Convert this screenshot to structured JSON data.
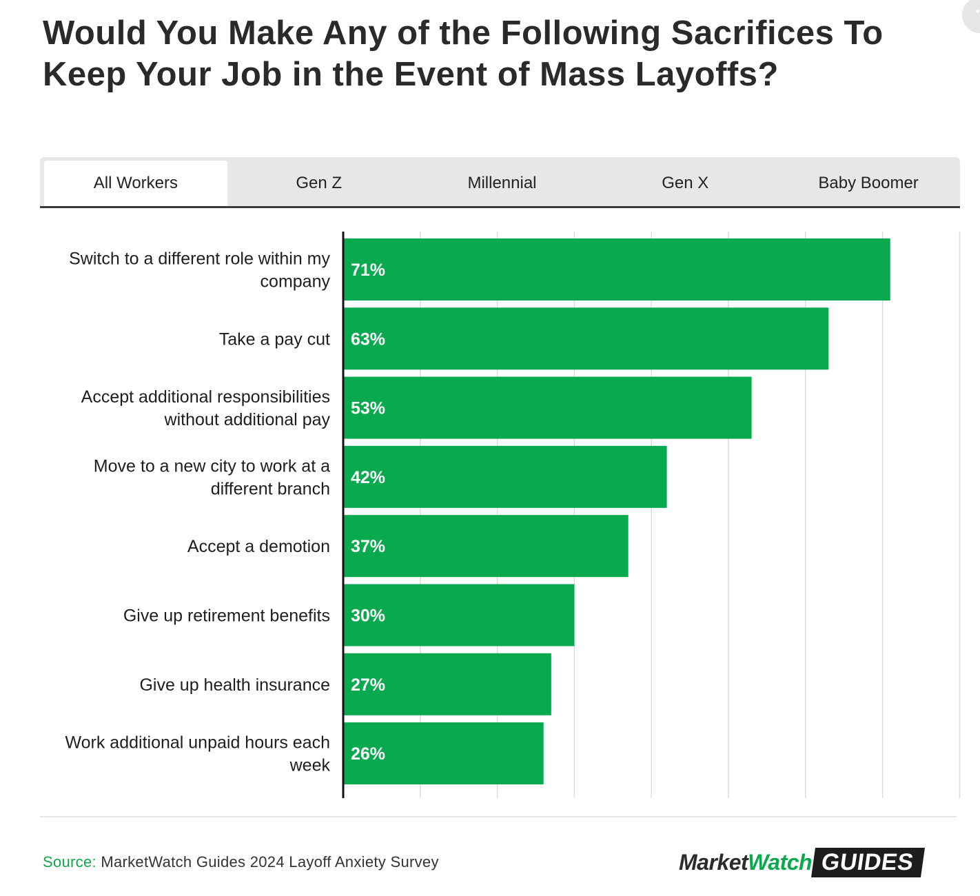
{
  "header": {
    "title_line1": "Would You Make Any of the Following Sacrifices To",
    "title_line2": "Keep Your Job in the Event of Mass Layoffs?"
  },
  "tabs": [
    {
      "label": "All Workers",
      "active": true
    },
    {
      "label": "Gen Z",
      "active": false
    },
    {
      "label": "Millennial",
      "active": false
    },
    {
      "label": "Gen X",
      "active": false
    },
    {
      "label": "Baby Boomer",
      "active": false
    }
  ],
  "chart_data": {
    "type": "bar",
    "orientation": "horizontal",
    "categories": [
      [
        "Switch to a different role within my",
        "company"
      ],
      [
        "Take a pay cut"
      ],
      [
        "Accept additional responsibilities",
        "without additional pay"
      ],
      [
        "Move to a new city to work at a",
        "different branch"
      ],
      [
        "Accept a demotion"
      ],
      [
        "Give up retirement benefits"
      ],
      [
        "Give up health insurance"
      ],
      [
        "Work additional unpaid hours each",
        "week"
      ]
    ],
    "values": [
      71,
      63,
      53,
      42,
      37,
      30,
      27,
      26
    ],
    "value_labels": [
      "71%",
      "63%",
      "53%",
      "42%",
      "37%",
      "30%",
      "27%",
      "26%"
    ],
    "xlim": [
      0,
      80
    ],
    "grid": "vertical, every 10",
    "bar_color": "#09aa4f",
    "legend": "none"
  },
  "footer": {
    "source_label": "Source:",
    "source_text": "MarketWatch Guides 2024 Layoff Anxiety Survey",
    "logo_part1": "Market",
    "logo_part2": "Watch",
    "logo_part3": "GUIDES"
  }
}
